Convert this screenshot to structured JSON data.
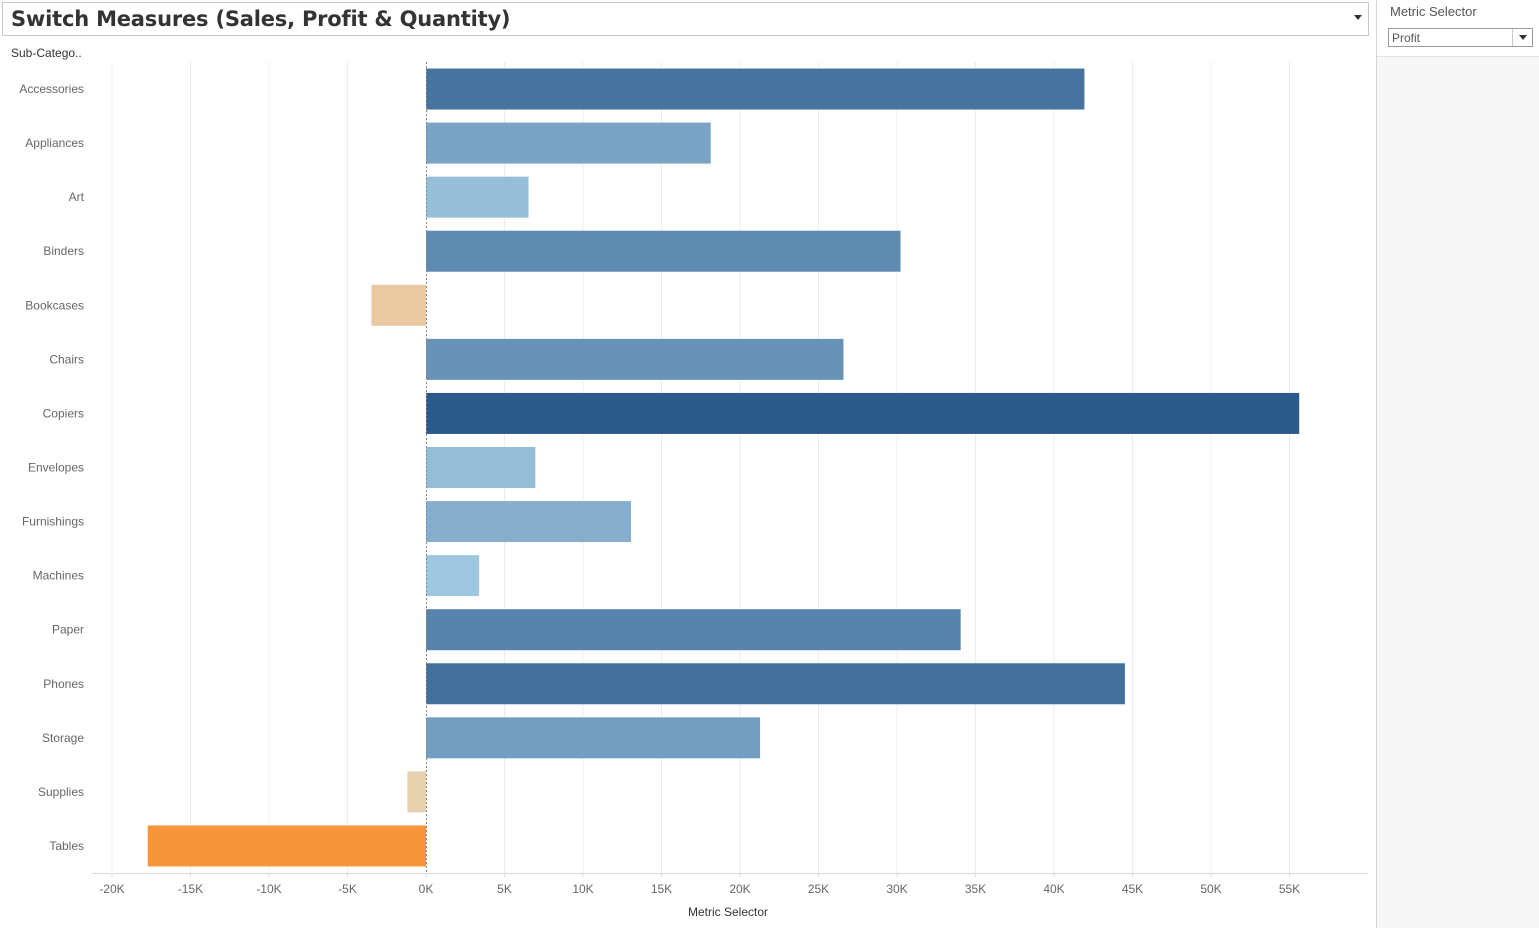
{
  "title": "Switch Measures (Sales, Profit & Quantity)",
  "parameter": {
    "label": "Metric Selector",
    "value": "Profit"
  },
  "row_header": "Sub-Catego..",
  "chart_data": {
    "type": "bar",
    "orientation": "horizontal",
    "categories": [
      "Accessories",
      "Appliances",
      "Art",
      "Binders",
      "Bookcases",
      "Chairs",
      "Copiers",
      "Envelopes",
      "Furnishings",
      "Machines",
      "Paper",
      "Phones",
      "Storage",
      "Supplies",
      "Tables"
    ],
    "values": [
      41937,
      18138,
      6528,
      30222,
      -3473,
      26590,
      55618,
      6964,
      13059,
      3385,
      34054,
      44516,
      21279,
      -1189,
      -17725
    ],
    "xlabel": "Metric Selector",
    "ylabel": "",
    "xlim": [
      -21000,
      59000
    ],
    "ticks": [
      -20000,
      -15000,
      -10000,
      -5000,
      0,
      5000,
      10000,
      15000,
      20000,
      25000,
      30000,
      35000,
      40000,
      45000,
      50000,
      55000
    ],
    "tick_labels": [
      "-20K",
      "-15K",
      "-10K",
      "-5K",
      "0K",
      "5K",
      "10K",
      "15K",
      "20K",
      "25K",
      "30K",
      "35K",
      "40K",
      "45K",
      "50K",
      "55K"
    ],
    "grid": true,
    "colors": {
      "positive_light": "#a9cfe6",
      "positive_dark": "#2b5a8a",
      "negative_light": "#e6d6b9",
      "negative_dark": "#f7953a",
      "zero_line": "#888888",
      "grid": "#ececec"
    }
  }
}
